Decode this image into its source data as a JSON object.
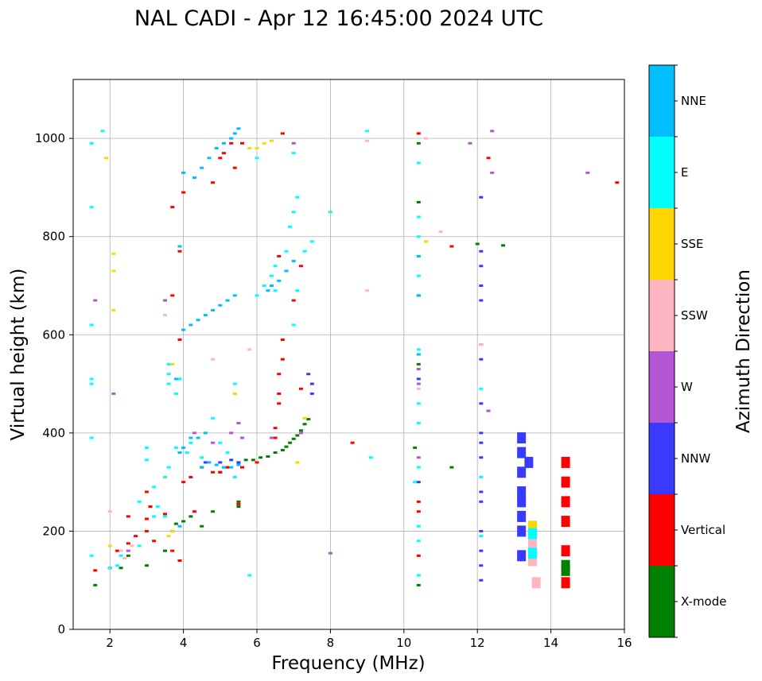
{
  "chart_data": {
    "type": "scatter",
    "title": "NAL CADI - Apr 12 16:45:00 2024 UTC",
    "xlabel": "Frequency (MHz)",
    "ylabel": "Virtual height (km)",
    "xlim": [
      1,
      16
    ],
    "ylim": [
      0,
      1120
    ],
    "xticks": [
      2,
      4,
      6,
      8,
      10,
      12,
      14,
      16
    ],
    "yticks": [
      0,
      200,
      400,
      600,
      800,
      1000
    ],
    "grid": true,
    "colorbar": {
      "label": "Azimuth Direction",
      "categories": [
        "X-mode",
        "Vertical",
        "NNW",
        "W",
        "SSW",
        "SSE",
        "E",
        "NNE"
      ],
      "colors": [
        "#008000",
        "#ff0000",
        "#3a3aff",
        "#b455d6",
        "#ffb6c1",
        "#ffd700",
        "#00ffff",
        "#00bfff"
      ]
    },
    "series": [
      {
        "name": "X-mode",
        "points": [
          [
            1.6,
            90
          ],
          [
            2.3,
            125
          ],
          [
            2.5,
            150
          ],
          [
            3.0,
            130
          ],
          [
            3.5,
            160
          ],
          [
            3.7,
            200
          ],
          [
            3.8,
            215
          ],
          [
            4.0,
            220
          ],
          [
            4.2,
            230
          ],
          [
            4.5,
            210
          ],
          [
            4.8,
            240
          ],
          [
            5.0,
            320
          ],
          [
            5.2,
            330
          ],
          [
            5.5,
            340
          ],
          [
            5.7,
            345
          ],
          [
            5.9,
            345
          ],
          [
            6.1,
            350
          ],
          [
            6.3,
            352
          ],
          [
            6.5,
            360
          ],
          [
            6.7,
            365
          ],
          [
            6.8,
            372
          ],
          [
            6.9,
            380
          ],
          [
            7.0,
            388
          ],
          [
            7.1,
            395
          ],
          [
            7.2,
            405
          ],
          [
            7.3,
            418
          ],
          [
            7.4,
            428
          ],
          [
            5.5,
            250
          ],
          [
            5.5,
            260
          ],
          [
            10.3,
            370
          ],
          [
            10.4,
            90
          ],
          [
            10.4,
            540
          ],
          [
            10.4,
            680
          ],
          [
            10.4,
            870
          ],
          [
            10.4,
            990
          ],
          [
            12.0,
            785
          ],
          [
            12.7,
            782
          ],
          [
            11.3,
            330
          ],
          [
            14.4,
            130
          ],
          [
            14.4,
            120
          ]
        ]
      },
      {
        "name": "Vertical",
        "points": [
          [
            1.6,
            120
          ],
          [
            2.0,
            125
          ],
          [
            2.2,
            160
          ],
          [
            2.5,
            175
          ],
          [
            2.5,
            230
          ],
          [
            2.7,
            190
          ],
          [
            3.0,
            225
          ],
          [
            3.0,
            280
          ],
          [
            3.0,
            200
          ],
          [
            3.1,
            250
          ],
          [
            3.2,
            180
          ],
          [
            3.5,
            235
          ],
          [
            3.7,
            160
          ],
          [
            3.7,
            680
          ],
          [
            3.9,
            140
          ],
          [
            3.9,
            590
          ],
          [
            3.9,
            770
          ],
          [
            3.7,
            860
          ],
          [
            4.0,
            300
          ],
          [
            4.2,
            310
          ],
          [
            4.3,
            240
          ],
          [
            4.5,
            330
          ],
          [
            4.8,
            320
          ],
          [
            5.0,
            320
          ],
          [
            5.2,
            330
          ],
          [
            5.5,
            255
          ],
          [
            5.6,
            330
          ],
          [
            6.0,
            340
          ],
          [
            6.5,
            390
          ],
          [
            6.5,
            410
          ],
          [
            6.6,
            460
          ],
          [
            6.6,
            480
          ],
          [
            6.6,
            520
          ],
          [
            6.7,
            550
          ],
          [
            6.7,
            590
          ],
          [
            6.6,
            760
          ],
          [
            6.7,
            1010
          ],
          [
            7.2,
            490
          ],
          [
            7.2,
            740
          ],
          [
            7.0,
            670
          ],
          [
            4.8,
            910
          ],
          [
            5.0,
            960
          ],
          [
            5.1,
            970
          ],
          [
            5.3,
            990
          ],
          [
            5.4,
            940
          ],
          [
            5.6,
            990
          ],
          [
            4.0,
            890
          ],
          [
            3.5,
            670
          ],
          [
            8.6,
            380
          ],
          [
            10.4,
            150
          ],
          [
            10.4,
            240
          ],
          [
            10.4,
            260
          ],
          [
            10.4,
            1010
          ],
          [
            11.3,
            780
          ],
          [
            12.3,
            960
          ],
          [
            15.8,
            910
          ],
          [
            14.4,
            340
          ],
          [
            14.4,
            300
          ],
          [
            14.4,
            260
          ],
          [
            14.4,
            220
          ],
          [
            14.4,
            160
          ],
          [
            14.4,
            95
          ]
        ]
      },
      {
        "name": "NNW",
        "points": [
          [
            13.2,
            390
          ],
          [
            13.2,
            360
          ],
          [
            13.2,
            320
          ],
          [
            13.2,
            280
          ],
          [
            13.2,
            260
          ],
          [
            13.2,
            230
          ],
          [
            13.2,
            200
          ],
          [
            13.2,
            150
          ],
          [
            13.4,
            340
          ],
          [
            12.1,
            100
          ],
          [
            12.1,
            130
          ],
          [
            12.1,
            160
          ],
          [
            12.1,
            200
          ],
          [
            12.1,
            260
          ],
          [
            12.1,
            280
          ],
          [
            12.1,
            350
          ],
          [
            12.1,
            380
          ],
          [
            12.1,
            400
          ],
          [
            12.1,
            460
          ],
          [
            12.1,
            550
          ],
          [
            12.1,
            580
          ],
          [
            12.1,
            670
          ],
          [
            12.1,
            700
          ],
          [
            12.1,
            740
          ],
          [
            12.1,
            770
          ],
          [
            12.1,
            880
          ],
          [
            7.5,
            480
          ],
          [
            7.5,
            500
          ],
          [
            7.4,
            520
          ],
          [
            4.6,
            340
          ],
          [
            5.0,
            340
          ],
          [
            5.3,
            345
          ],
          [
            5.5,
            340
          ],
          [
            10.4,
            510
          ],
          [
            10.4,
            300
          ]
        ]
      },
      {
        "name": "W",
        "points": [
          [
            2.1,
            480
          ],
          [
            1.6,
            670
          ],
          [
            2.5,
            160
          ],
          [
            3.5,
            670
          ],
          [
            4.3,
            400
          ],
          [
            4.8,
            380
          ],
          [
            5.3,
            400
          ],
          [
            5.5,
            420
          ],
          [
            5.6,
            390
          ],
          [
            6.4,
            390
          ],
          [
            7.2,
            400
          ],
          [
            7.0,
            990
          ],
          [
            10.4,
            500
          ],
          [
            10.4,
            530
          ],
          [
            10.4,
            350
          ],
          [
            12.3,
            445
          ],
          [
            12.4,
            1015
          ],
          [
            12.4,
            930
          ],
          [
            11.8,
            990
          ],
          [
            15.0,
            930
          ],
          [
            8.0,
            155
          ],
          [
            13.5,
            180
          ],
          [
            13.5,
            200
          ]
        ]
      },
      {
        "name": "SSW",
        "points": [
          [
            2.0,
            240
          ],
          [
            2.3,
            160
          ],
          [
            2.4,
            145
          ],
          [
            2.6,
            170
          ],
          [
            3.5,
            640
          ],
          [
            4.8,
            550
          ],
          [
            5.8,
            570
          ],
          [
            9.0,
            995
          ],
          [
            9.0,
            690
          ],
          [
            10.6,
            1000
          ],
          [
            10.4,
            490
          ],
          [
            11.0,
            810
          ],
          [
            12.1,
            580
          ],
          [
            13.5,
            140
          ],
          [
            13.6,
            95
          ],
          [
            13.5,
            170
          ],
          [
            13.5,
            185
          ]
        ]
      },
      {
        "name": "SSE",
        "points": [
          [
            1.9,
            960
          ],
          [
            2.1,
            765
          ],
          [
            2.1,
            730
          ],
          [
            2.1,
            650
          ],
          [
            2.0,
            170
          ],
          [
            3.7,
            540
          ],
          [
            3.7,
            200
          ],
          [
            3.6,
            190
          ],
          [
            5.4,
            480
          ],
          [
            5.8,
            980
          ],
          [
            6.0,
            980
          ],
          [
            6.2,
            990
          ],
          [
            6.4,
            995
          ],
          [
            7.1,
            340
          ],
          [
            7.3,
            430
          ],
          [
            10.6,
            790
          ],
          [
            13.5,
            210
          ],
          [
            13.5,
            200
          ]
        ]
      },
      {
        "name": "E",
        "points": [
          [
            1.5,
            150
          ],
          [
            1.5,
            390
          ],
          [
            1.5,
            510
          ],
          [
            1.5,
            500
          ],
          [
            1.5,
            620
          ],
          [
            1.5,
            860
          ],
          [
            1.5,
            990
          ],
          [
            1.8,
            1015
          ],
          [
            2.0,
            125
          ],
          [
            2.2,
            130
          ],
          [
            2.3,
            150
          ],
          [
            2.8,
            170
          ],
          [
            2.8,
            260
          ],
          [
            3.0,
            345
          ],
          [
            3.0,
            370
          ],
          [
            3.2,
            290
          ],
          [
            3.2,
            230
          ],
          [
            3.3,
            250
          ],
          [
            3.5,
            230
          ],
          [
            3.5,
            310
          ],
          [
            3.6,
            330
          ],
          [
            3.6,
            500
          ],
          [
            3.6,
            520
          ],
          [
            3.6,
            540
          ],
          [
            3.8,
            370
          ],
          [
            3.8,
            480
          ],
          [
            3.9,
            510
          ],
          [
            4.1,
            360
          ],
          [
            4.2,
            380
          ],
          [
            4.5,
            350
          ],
          [
            4.8,
            430
          ],
          [
            5.0,
            380
          ],
          [
            5.2,
            360
          ],
          [
            5.4,
            310
          ],
          [
            5.4,
            500
          ],
          [
            5.8,
            110
          ],
          [
            6.0,
            680
          ],
          [
            6.2,
            700
          ],
          [
            6.4,
            720
          ],
          [
            6.5,
            740
          ],
          [
            6.5,
            690
          ],
          [
            6.8,
            770
          ],
          [
            6.9,
            820
          ],
          [
            7.0,
            850
          ],
          [
            7.1,
            880
          ],
          [
            7.1,
            690
          ],
          [
            7.3,
            770
          ],
          [
            7.5,
            790
          ],
          [
            7.0,
            620
          ],
          [
            7.0,
            970
          ],
          [
            6.0,
            960
          ],
          [
            8.0,
            850
          ],
          [
            9.0,
            1015
          ],
          [
            9.1,
            350
          ],
          [
            10.3,
            300
          ],
          [
            10.4,
            110
          ],
          [
            10.4,
            180
          ],
          [
            10.4,
            210
          ],
          [
            10.4,
            330
          ],
          [
            10.4,
            560
          ],
          [
            10.4,
            570
          ],
          [
            10.4,
            460
          ],
          [
            10.4,
            420
          ],
          [
            10.4,
            720
          ],
          [
            10.4,
            760
          ],
          [
            10.4,
            800
          ],
          [
            10.4,
            840
          ],
          [
            10.4,
            950
          ],
          [
            12.1,
            310
          ],
          [
            12.1,
            190
          ],
          [
            12.1,
            490
          ],
          [
            13.5,
            155
          ],
          [
            13.5,
            195
          ]
        ]
      },
      {
        "name": "NNE",
        "points": [
          [
            3.9,
            360
          ],
          [
            4.0,
            370
          ],
          [
            4.2,
            390
          ],
          [
            4.4,
            390
          ],
          [
            4.6,
            400
          ],
          [
            4.5,
            330
          ],
          [
            4.7,
            340
          ],
          [
            4.9,
            335
          ],
          [
            5.1,
            330
          ],
          [
            5.3,
            330
          ],
          [
            5.5,
            335
          ],
          [
            4.0,
            610
          ],
          [
            4.2,
            620
          ],
          [
            4.4,
            630
          ],
          [
            4.6,
            640
          ],
          [
            4.8,
            650
          ],
          [
            5.0,
            660
          ],
          [
            5.2,
            670
          ],
          [
            5.4,
            680
          ],
          [
            3.9,
            780
          ],
          [
            4.0,
            930
          ],
          [
            4.3,
            920
          ],
          [
            4.5,
            940
          ],
          [
            4.7,
            960
          ],
          [
            4.9,
            980
          ],
          [
            5.1,
            990
          ],
          [
            5.3,
            1000
          ],
          [
            5.4,
            1010
          ],
          [
            5.5,
            1020
          ],
          [
            6.3,
            690
          ],
          [
            6.4,
            700
          ],
          [
            6.6,
            710
          ],
          [
            6.8,
            730
          ],
          [
            7.0,
            750
          ],
          [
            10.4,
            680
          ],
          [
            10.4,
            760
          ],
          [
            10.4,
            560
          ],
          [
            3.9,
            210
          ],
          [
            3.8,
            510
          ]
        ]
      }
    ]
  }
}
